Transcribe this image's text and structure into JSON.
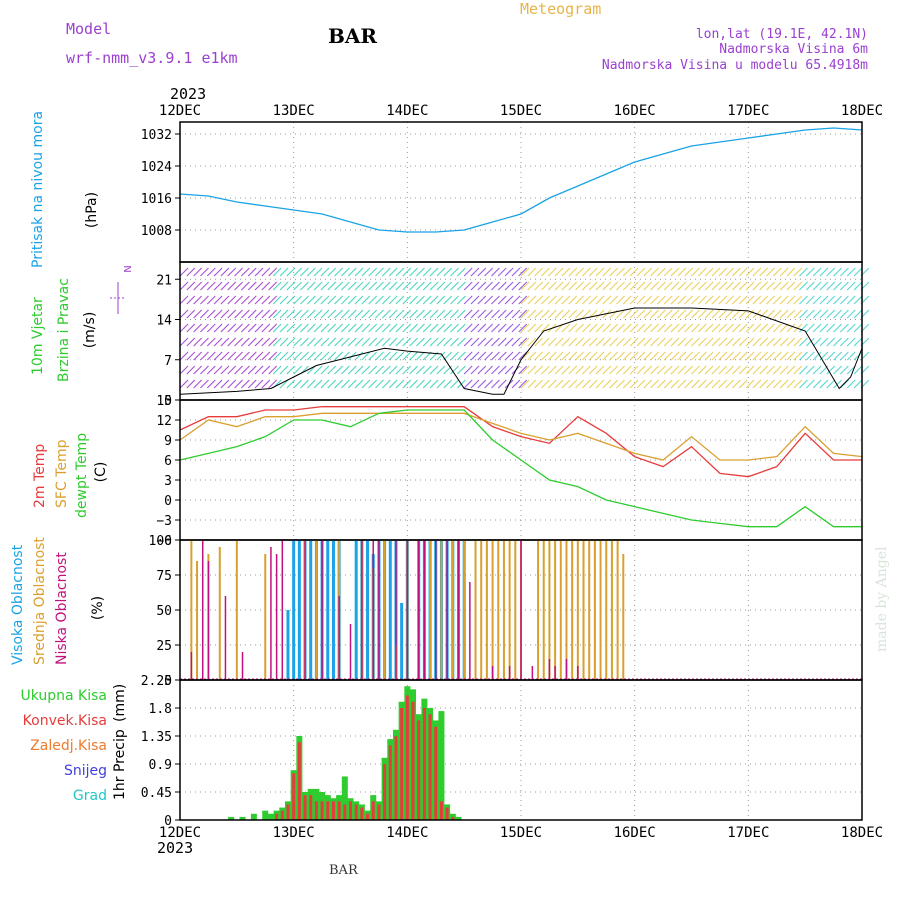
{
  "header": {
    "model_label": "Model",
    "model_name": "wrf-nmm_v3.9.1 e1km",
    "station": "BAR",
    "title": "Meteogram",
    "coords": "lon,lat (19.1E, 42.1N)",
    "altitude": "Nadmorska Visina 6m",
    "model_altitude": "Nadmorska Visina u modelu 65.4918m"
  },
  "footer": {
    "station": "BAR",
    "watermark": "made by Angel"
  },
  "time_axis": {
    "year": "2023",
    "ticks": [
      "12DEC",
      "13DEC",
      "14DEC",
      "15DEC",
      "16DEC",
      "17DEC",
      "18DEC"
    ]
  },
  "colors": {
    "pressure": "#1aa3e6",
    "temp_2m": "#e63c3c",
    "temp_sfc": "#d9a030",
    "dewpoint": "#2ecc2e",
    "cloud_high": "#1aa3e6",
    "cloud_mid": "#d9a030",
    "cloud_low": "#c0127e",
    "precip_total": "#2ecc2e",
    "precip_conv": "#e63c3c",
    "precip_frozen": "#f07a2c",
    "snow": "#4040e0",
    "hail": "#20c8c8",
    "wind_label": "#2ecc2e",
    "model_text": "#9b40d0",
    "title_text": "#e8b44a"
  },
  "chart_data": [
    {
      "id": "pressure",
      "type": "line",
      "ylabel": "Pritisak na nivou mora",
      "unit": "(hPa)",
      "yticks": [
        "1008",
        "1016",
        "1024",
        "1032"
      ],
      "ylim": [
        1000,
        1035
      ],
      "x_days": [
        0,
        0.25,
        0.5,
        0.75,
        1.0,
        1.25,
        1.5,
        1.75,
        2.0,
        2.25,
        2.5,
        2.75,
        3.0,
        3.25,
        3.5,
        3.75,
        4.0,
        4.25,
        4.5,
        4.75,
        5.0,
        5.25,
        5.5,
        5.75,
        6.0
      ],
      "values": [
        1017,
        1016.5,
        1015,
        1014,
        1013,
        1012,
        1010,
        1008,
        1007.5,
        1007.5,
        1008,
        1010,
        1012,
        1016,
        1019,
        1022,
        1025,
        1027,
        1029,
        1030,
        1031,
        1032,
        1033,
        1033.5,
        1033
      ]
    },
    {
      "id": "wind",
      "type": "line",
      "ylabel_1": "10m Vjetar",
      "ylabel_2": "Brzina i Pravac",
      "unit": "(m/s)",
      "compass": "N",
      "yticks": [
        "0",
        "7",
        "14",
        "21"
      ],
      "ylim": [
        0,
        24
      ],
      "x_days": [
        0,
        0.5,
        0.8,
        1.0,
        1.2,
        1.5,
        1.8,
        2.0,
        2.3,
        2.5,
        2.75,
        2.85,
        3.0,
        3.2,
        3.5,
        3.75,
        4.0,
        4.5,
        5.0,
        5.5,
        5.8,
        5.9,
        6.0
      ],
      "values": [
        1,
        1.5,
        2,
        4,
        6,
        7.5,
        9,
        8.5,
        8,
        2,
        1,
        1,
        7,
        12,
        14,
        15,
        16,
        16,
        15.5,
        12,
        2,
        4,
        9
      ]
    },
    {
      "id": "temperature",
      "type": "line",
      "ylabel_1": "2m Temp",
      "ylabel_2": "SFC Temp",
      "ylabel_3": "dewpt Temp",
      "unit": "(C)",
      "yticks": [
        "−6",
        "−3",
        "0",
        "3",
        "6",
        "9",
        "12",
        "15"
      ],
      "ylim": [
        -6,
        15
      ],
      "x_days": [
        0,
        0.25,
        0.5,
        0.75,
        1.0,
        1.25,
        1.5,
        1.75,
        2.0,
        2.25,
        2.5,
        2.75,
        3.0,
        3.25,
        3.5,
        3.75,
        4.0,
        4.25,
        4.5,
        4.75,
        5.0,
        5.25,
        5.5,
        5.75,
        6.0
      ],
      "series": [
        {
          "name": "2m Temp",
          "values": [
            10.5,
            12.5,
            12.5,
            13.5,
            13.5,
            14,
            14,
            14,
            14,
            14,
            14,
            11,
            9.5,
            8.5,
            12.5,
            10,
            6.5,
            5,
            8,
            4,
            3.5,
            5,
            10,
            6,
            6
          ]
        },
        {
          "name": "SFC Temp",
          "values": [
            9,
            12,
            11,
            12.5,
            12.5,
            13,
            13,
            13,
            13,
            13,
            13,
            11.5,
            10,
            9,
            10,
            8.5,
            7,
            6,
            9.5,
            6,
            6,
            6.5,
            11,
            7,
            6.5
          ]
        },
        {
          "name": "dewpt Temp",
          "values": [
            6,
            7,
            8,
            9.5,
            12,
            12,
            11,
            13,
            13.5,
            13.5,
            13.5,
            9,
            6,
            3,
            2,
            0,
            -1,
            -2,
            -3,
            -3.5,
            -4,
            -4,
            -1,
            -4,
            -4
          ]
        }
      ]
    },
    {
      "id": "cloud",
      "type": "bar",
      "ylabel_1": "Visoka Oblacnost",
      "ylabel_2": "Srednja Oblacnost",
      "ylabel_3": "Niska Oblacnost",
      "unit": "(%)",
      "yticks": [
        "0",
        "25",
        "50",
        "75",
        "100"
      ],
      "ylim": [
        0,
        100
      ],
      "series": [
        {
          "name": "Visoka Oblacnost",
          "x_days": [
            0.95,
            1.0,
            1.05,
            1.1,
            1.15,
            1.2,
            1.25,
            1.3,
            1.35,
            1.4,
            1.55,
            1.6,
            1.65,
            1.7,
            1.75,
            1.8,
            1.85,
            1.9,
            1.95,
            2.0,
            2.1,
            2.15,
            2.2,
            2.25,
            2.3,
            2.35,
            2.4,
            2.45,
            2.5
          ],
          "values": [
            50,
            100,
            100,
            100,
            100,
            100,
            100,
            100,
            100,
            100,
            100,
            100,
            100,
            90,
            100,
            100,
            100,
            100,
            55,
            100,
            100,
            100,
            100,
            100,
            100,
            100,
            100,
            100,
            100
          ]
        },
        {
          "name": "Srednja Oblacnost",
          "x_days": [
            0.1,
            0.15,
            0.25,
            0.35,
            0.5,
            0.75,
            1.1,
            1.2,
            1.4,
            1.6,
            1.7,
            1.8,
            1.9,
            2.0,
            2.1,
            2.2,
            2.3,
            2.4,
            2.5,
            2.6,
            2.65,
            2.7,
            2.75,
            2.8,
            2.85,
            2.9,
            2.95,
            3.0,
            3.15,
            3.2,
            3.25,
            3.3,
            3.35,
            3.4,
            3.45,
            3.5,
            3.55,
            3.6,
            3.65,
            3.7,
            3.75,
            3.8,
            3.85,
            3.9
          ],
          "values": [
            100,
            85,
            90,
            95,
            100,
            90,
            100,
            100,
            100,
            100,
            80,
            100,
            25,
            100,
            35,
            100,
            100,
            100,
            100,
            100,
            100,
            100,
            100,
            100,
            100,
            100,
            100,
            100,
            100,
            100,
            100,
            100,
            100,
            100,
            100,
            100,
            100,
            100,
            100,
            100,
            100,
            100,
            100,
            90
          ]
        },
        {
          "name": "Niska Oblacnost",
          "x_days": [
            0.1,
            0.2,
            0.25,
            0.4,
            0.55,
            0.8,
            0.85,
            0.9,
            1.1,
            1.25,
            1.4,
            1.5,
            1.6,
            1.7,
            1.75,
            1.9,
            2.0,
            2.1,
            2.15,
            2.25,
            2.35,
            2.45,
            2.55,
            2.75,
            2.9,
            3.0,
            3.1,
            3.25,
            3.3,
            3.4,
            3.5
          ],
          "values": [
            20,
            100,
            85,
            60,
            20,
            95,
            90,
            100,
            100,
            100,
            60,
            40,
            100,
            100,
            100,
            100,
            100,
            100,
            100,
            100,
            100,
            100,
            70,
            10,
            10,
            100,
            10,
            15,
            10,
            15,
            10
          ]
        }
      ]
    },
    {
      "id": "precipitation",
      "type": "bar",
      "ylabel": "1hr Precip",
      "unit": "(mm)",
      "yticks": [
        "0",
        "0.45",
        "0.9",
        "1.35",
        "1.8",
        "2.25"
      ],
      "ylim": [
        0,
        2.25
      ],
      "legend": [
        "Ukupna Kisa",
        "Konvek.Kisa",
        "Zaledj.Kisa",
        "Snijeg",
        "Grad"
      ],
      "x_days": [
        0.45,
        0.55,
        0.65,
        0.75,
        0.8,
        0.85,
        0.9,
        0.95,
        1.0,
        1.05,
        1.1,
        1.15,
        1.2,
        1.25,
        1.3,
        1.35,
        1.4,
        1.45,
        1.5,
        1.55,
        1.6,
        1.65,
        1.7,
        1.75,
        1.8,
        1.85,
        1.9,
        1.95,
        2.0,
        2.05,
        2.1,
        2.15,
        2.2,
        2.25,
        2.3,
        2.35,
        2.4,
        2.45,
        2.5,
        2.55
      ],
      "total": [
        0.05,
        0.05,
        0.1,
        0.15,
        0.1,
        0.15,
        0.2,
        0.3,
        0.8,
        1.35,
        0.45,
        0.5,
        0.5,
        0.45,
        0.4,
        0.35,
        0.4,
        0.7,
        0.35,
        0.3,
        0.25,
        0.15,
        0.4,
        0.3,
        1.0,
        1.3,
        1.45,
        1.9,
        2.15,
        2.1,
        1.7,
        1.95,
        1.8,
        1.6,
        1.75,
        0.25,
        0.1,
        0.05,
        0,
        0
      ],
      "convective": [
        0,
        0,
        0,
        0,
        0,
        0.1,
        0.15,
        0.25,
        0.75,
        1.25,
        0.4,
        0.4,
        0.3,
        0.3,
        0.3,
        0.3,
        0.3,
        0.25,
        0.3,
        0.25,
        0.2,
        0.1,
        0.3,
        0.25,
        0.9,
        1.2,
        1.35,
        1.8,
        2.0,
        1.9,
        1.6,
        1.8,
        1.7,
        1.5,
        0.3,
        0.2,
        0.05,
        0,
        0,
        0
      ]
    }
  ]
}
